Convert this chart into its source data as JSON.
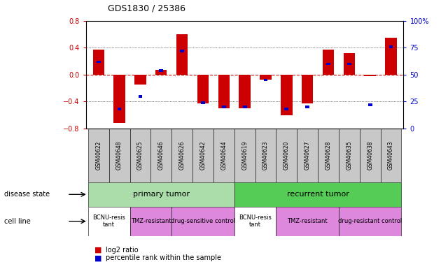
{
  "title": "GDS1830 / 25386",
  "samples": [
    "GSM40622",
    "GSM40648",
    "GSM40625",
    "GSM40646",
    "GSM40626",
    "GSM40642",
    "GSM40644",
    "GSM40619",
    "GSM40623",
    "GSM40620",
    "GSM40627",
    "GSM40628",
    "GSM40635",
    "GSM40638",
    "GSM40643"
  ],
  "log2_ratio": [
    0.37,
    -0.72,
    -0.15,
    0.07,
    0.6,
    -0.43,
    -0.5,
    -0.5,
    -0.07,
    -0.6,
    -0.43,
    0.37,
    0.32,
    -0.02,
    0.55
  ],
  "pct_rank": [
    0.62,
    0.18,
    0.3,
    0.54,
    0.72,
    0.24,
    0.2,
    0.2,
    0.45,
    0.18,
    0.2,
    0.6,
    0.6,
    0.22,
    0.76
  ],
  "ylim": [
    -0.8,
    0.8
  ],
  "yticks_left": [
    -0.8,
    -0.4,
    0.0,
    0.4,
    0.8
  ],
  "yticks_right": [
    0,
    25,
    50,
    75,
    100
  ],
  "bar_color": "#cc0000",
  "dot_color": "#0000cc",
  "zero_line_color": "#cc0000",
  "grid_color": "#000000",
  "disease_state_groups": [
    {
      "label": "primary tumor",
      "start": 0,
      "end": 7,
      "color": "#aaddaa"
    },
    {
      "label": "recurrent tumor",
      "start": 7,
      "end": 15,
      "color": "#55cc55"
    }
  ],
  "cell_line_groups": [
    {
      "label": "BCNU-resis\ntant",
      "start": 0,
      "end": 2,
      "color": "#ffffff"
    },
    {
      "label": "TMZ-resistant",
      "start": 2,
      "end": 4,
      "color": "#dd88dd"
    },
    {
      "label": "drug-sensitive control",
      "start": 4,
      "end": 7,
      "color": "#dd88dd"
    },
    {
      "label": "BCNU-resis\ntant",
      "start": 7,
      "end": 9,
      "color": "#ffffff"
    },
    {
      "label": "TMZ-resistant",
      "start": 9,
      "end": 12,
      "color": "#dd88dd"
    },
    {
      "label": "drug-resistant control",
      "start": 12,
      "end": 15,
      "color": "#dd88dd"
    }
  ],
  "bar_width": 0.55
}
